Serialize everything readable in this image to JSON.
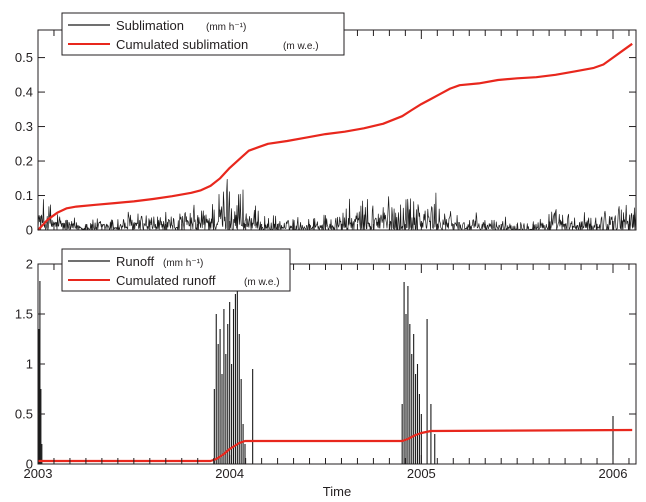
{
  "colors": {
    "series_raw": "#1a1a1a",
    "series_cumulated": "#e8271d",
    "axes": "#231f20",
    "background": "#ffffff"
  },
  "chart_data": [
    {
      "type": "line",
      "panel": "top",
      "title": "",
      "xlabel": "",
      "ylabel": "",
      "xlim": [
        2003.0,
        2006.12
      ],
      "ylim": [
        0,
        0.58
      ],
      "x_ticks": [
        2003,
        2004,
        2005,
        2006
      ],
      "y_ticks": [
        0,
        0.1,
        0.2,
        0.3,
        0.4,
        0.5
      ],
      "y_tick_labels": [
        "0",
        "0.1",
        "0.2",
        "0.3",
        "0.4",
        "0.5"
      ],
      "grid": false,
      "legend_position": "top-left",
      "series": [
        {
          "name": "Sublimation",
          "unit": "(mm h⁻¹)",
          "color": "#1a1a1a",
          "style": "dense-spiky",
          "envelope": {
            "x": [
              2003.0,
              2003.05,
              2003.1,
              2003.2,
              2003.3,
              2003.4,
              2003.5,
              2003.6,
              2003.7,
              2003.8,
              2003.9,
              2003.95,
              2004.0,
              2004.05,
              2004.1,
              2004.15,
              2004.2,
              2004.3,
              2004.4,
              2004.5,
              2004.6,
              2004.7,
              2004.8,
              2004.9,
              2004.95,
              2005.0,
              2005.05,
              2005.1,
              2005.15,
              2005.2,
              2005.3,
              2005.4,
              2005.5,
              2005.6,
              2005.7,
              2005.8,
              2005.9,
              2006.0,
              2006.05,
              2006.12
            ],
            "y": [
              0.12,
              0.11,
              0.07,
              0.04,
              0.04,
              0.05,
              0.07,
              0.06,
              0.06,
              0.08,
              0.1,
              0.15,
              0.2,
              0.18,
              0.1,
              0.06,
              0.05,
              0.04,
              0.05,
              0.06,
              0.09,
              0.1,
              0.12,
              0.13,
              0.15,
              0.13,
              0.12,
              0.1,
              0.08,
              0.06,
              0.05,
              0.04,
              0.04,
              0.05,
              0.07,
              0.05,
              0.06,
              0.1,
              0.12,
              0.1
            ]
          }
        },
        {
          "name": "Cumulated sublimation",
          "unit": "(m w.e.)",
          "color": "#e8271d",
          "x": [
            2003.0,
            2003.05,
            2003.1,
            2003.15,
            2003.2,
            2003.3,
            2003.4,
            2003.5,
            2003.6,
            2003.7,
            2003.8,
            2003.85,
            2003.9,
            2003.95,
            2004.0,
            2004.05,
            2004.1,
            2004.15,
            2004.2,
            2004.3,
            2004.4,
            2004.5,
            2004.6,
            2004.7,
            2004.8,
            2004.9,
            2004.95,
            2005.0,
            2005.05,
            2005.1,
            2005.15,
            2005.2,
            2005.3,
            2005.4,
            2005.5,
            2005.6,
            2005.7,
            2005.8,
            2005.9,
            2005.95,
            2006.0,
            2006.05,
            2006.1
          ],
          "y": [
            0.0,
            0.03,
            0.05,
            0.063,
            0.068,
            0.073,
            0.078,
            0.083,
            0.09,
            0.098,
            0.108,
            0.115,
            0.128,
            0.15,
            0.18,
            0.205,
            0.23,
            0.24,
            0.25,
            0.258,
            0.268,
            0.278,
            0.285,
            0.295,
            0.308,
            0.33,
            0.348,
            0.365,
            0.38,
            0.395,
            0.41,
            0.42,
            0.425,
            0.435,
            0.44,
            0.443,
            0.45,
            0.46,
            0.47,
            0.48,
            0.5,
            0.52,
            0.54
          ]
        }
      ]
    },
    {
      "type": "line",
      "panel": "bottom",
      "title": "",
      "xlabel": "Time",
      "ylabel": "",
      "xlim": [
        2003.0,
        2006.12
      ],
      "ylim": [
        0,
        2
      ],
      "x_ticks": [
        2003,
        2004,
        2005,
        2006
      ],
      "x_tick_labels": [
        "2003",
        "2004",
        "2005",
        "2006"
      ],
      "y_ticks": [
        0,
        0.5,
        1,
        1.5,
        2
      ],
      "y_tick_labels": [
        "0",
        "0.5",
        "1",
        "1.5",
        "2"
      ],
      "grid": false,
      "legend_position": "top-left",
      "series": [
        {
          "name": "Runoff",
          "unit": "(mm h⁻¹)",
          "color": "#1a1a1a",
          "style": "spikes",
          "x": [
            2003.005,
            2003.01,
            2003.015,
            2003.02,
            2003.92,
            2003.93,
            2003.94,
            2003.95,
            2003.96,
            2003.97,
            2003.98,
            2003.99,
            2004.0,
            2004.01,
            2004.02,
            2004.03,
            2004.04,
            2004.05,
            2004.06,
            2004.07,
            2004.08,
            2004.12,
            2004.9,
            2004.91,
            2004.92,
            2004.93,
            2004.94,
            2004.95,
            2004.96,
            2004.97,
            2004.98,
            2004.99,
            2005.0,
            2005.03,
            2005.05,
            2005.07,
            2006.0
          ],
          "y": [
            1.35,
            1.83,
            0.75,
            0.2,
            0.75,
            1.5,
            1.2,
            1.35,
            0.9,
            1.55,
            1.1,
            1.4,
            1.62,
            1.0,
            1.55,
            1.7,
            1.75,
            1.3,
            0.85,
            0.4,
            0.2,
            0.95,
            0.6,
            1.82,
            1.5,
            1.78,
            1.4,
            1.1,
            1.3,
            0.9,
            1.0,
            0.7,
            0.5,
            1.45,
            0.6,
            0.3,
            0.48
          ]
        },
        {
          "name": "Cumulated runoff",
          "unit": "(m w.e.)",
          "color": "#e8271d",
          "x": [
            2003.0,
            2003.9,
            2003.93,
            2003.97,
            2004.0,
            2004.05,
            2004.08,
            2004.9,
            2004.93,
            2004.97,
            2005.0,
            2005.05,
            2006.1
          ],
          "y": [
            0.03,
            0.03,
            0.05,
            0.1,
            0.15,
            0.21,
            0.23,
            0.23,
            0.25,
            0.29,
            0.31,
            0.33,
            0.34
          ]
        }
      ]
    }
  ]
}
